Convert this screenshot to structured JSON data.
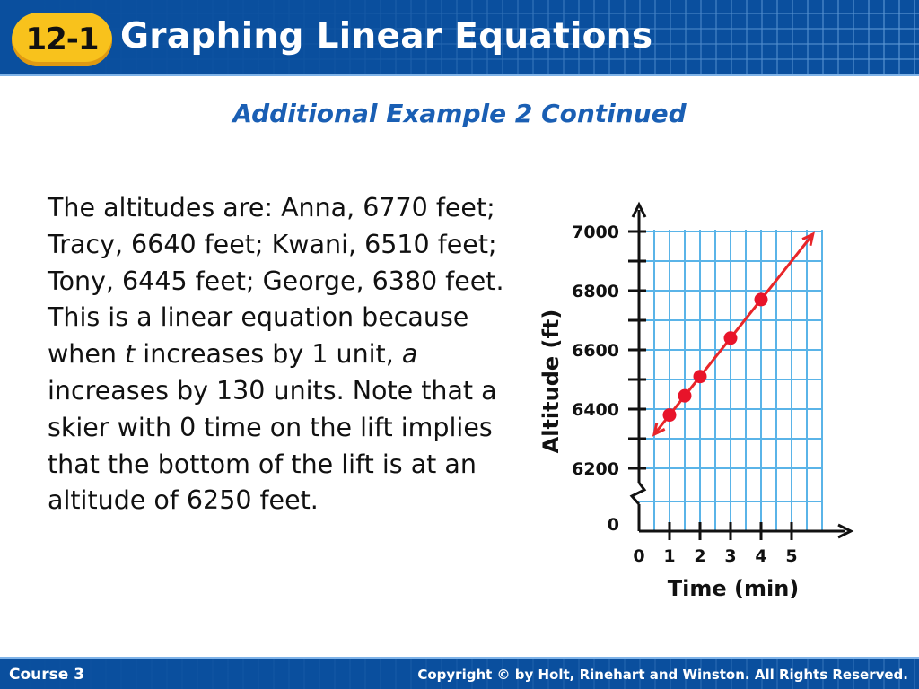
{
  "header": {
    "badge": "12-1",
    "title": "Graphing Linear Equations"
  },
  "subtitle": "Additional Example 2 Continued",
  "body": {
    "p1": "The altitudes are: Anna, 6770 feet; Tracy, 6640 feet; Kwani, 6510 feet; Tony, 6445 feet; George, 6380 feet.",
    "p2_a": "This is a linear equation because when ",
    "p2_var_t": "t",
    "p2_b": " increases by 1 unit, ",
    "p2_var_a": "a",
    "p2_c": " increases by 130 units. Note that a skier with 0 time on the lift implies that the bottom of the lift is at an altitude of 6250 feet."
  },
  "chart_data": {
    "type": "line",
    "xlabel": "Time (min)",
    "ylabel": "Altitude (ft)",
    "x_ticks": [
      "0",
      "1",
      "2",
      "3",
      "4",
      "5"
    ],
    "y_ticks": [
      "0",
      "6200",
      "6400",
      "6600",
      "6800",
      "7000"
    ],
    "xlim": [
      0,
      6
    ],
    "ylim": [
      6200,
      7000
    ],
    "y_axis_break": true,
    "grid": true,
    "points": [
      {
        "x": 1,
        "y": 6380
      },
      {
        "x": 1.5,
        "y": 6445
      },
      {
        "x": 2,
        "y": 6510
      },
      {
        "x": 3,
        "y": 6640
      },
      {
        "x": 4,
        "y": 6770
      }
    ],
    "line": {
      "x1": 0.5,
      "y1": 6315,
      "x2": 5.7,
      "y2": 6991
    },
    "colors": {
      "line": "#e8262a",
      "point": "#e8142a",
      "grid": "#5ab4e8",
      "axis": "#111111"
    }
  },
  "footer": {
    "course": "Course 3",
    "copyright": "Copyright © by Holt, Rinehart and Winston. All Rights Reserved."
  }
}
